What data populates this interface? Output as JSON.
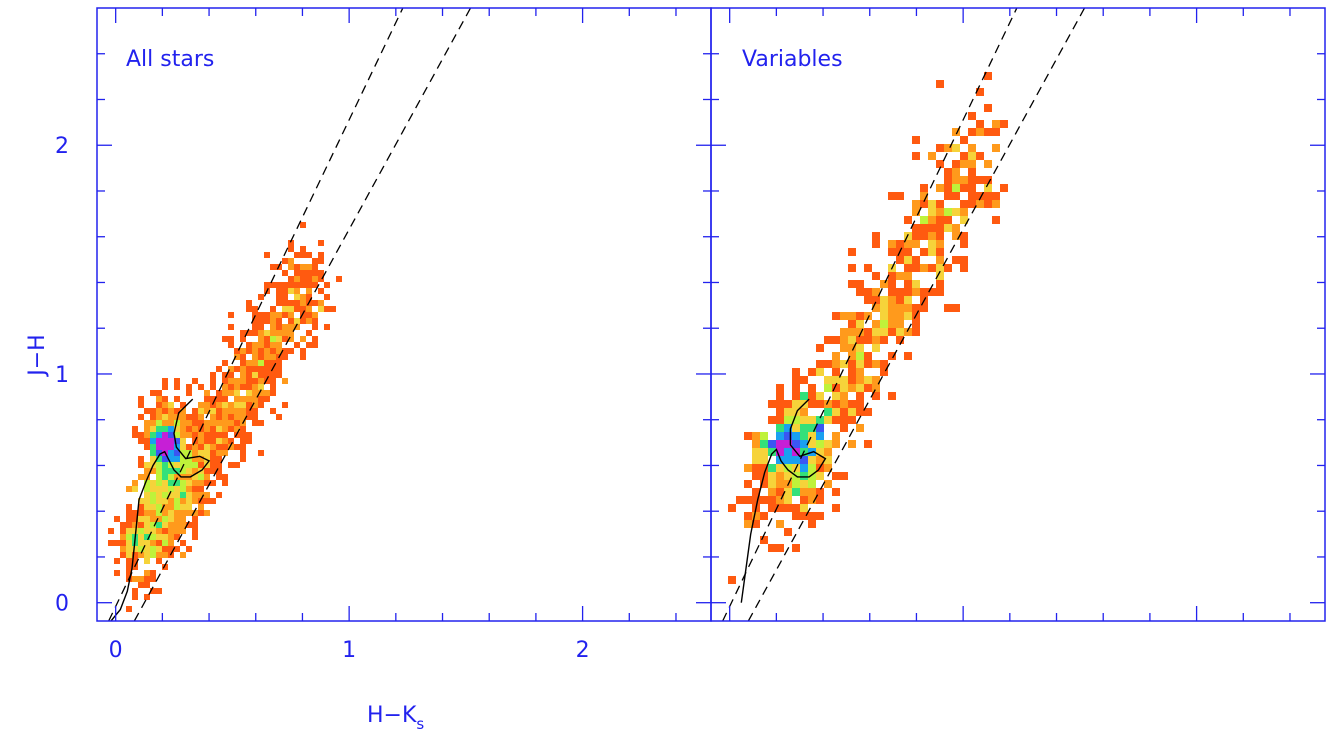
{
  "colors": {
    "axis": "#2222ee",
    "text": "#2222ee",
    "curve": "#000000",
    "density": [
      "#ff1f00",
      "#ff5a10",
      "#ff9a1c",
      "#f6d33a",
      "#bff23a",
      "#33e07a",
      "#1aa0f0",
      "#3b56f2",
      "#c61fd6"
    ]
  },
  "chart_data": [
    {
      "type": "heatmap",
      "panel_label": "All stars",
      "xlabel": "H−K",
      "xlabel_subscript": "s",
      "ylabel": "J−H",
      "xlim": [
        -0.08,
        2.55
      ],
      "ylim": [
        -0.08,
        2.6
      ],
      "x_ticks": [
        0,
        1,
        2
      ],
      "y_ticks": [
        0,
        1,
        2
      ],
      "reddening_lines": [
        {
          "from": [
            -0.03,
            -0.08
          ],
          "to": [
            1.23,
            2.6
          ]
        },
        {
          "from": [
            0.08,
            -0.08
          ],
          "to": [
            1.52,
            2.6
          ]
        }
      ],
      "intrinsic_locus": [
        [
          -0.02,
          -0.08
        ],
        [
          0.02,
          -0.03
        ],
        [
          0.05,
          0.05
        ],
        [
          0.07,
          0.15
        ],
        [
          0.08,
          0.25
        ],
        [
          0.09,
          0.35
        ],
        [
          0.1,
          0.45
        ],
        [
          0.13,
          0.53
        ],
        [
          0.16,
          0.6
        ],
        [
          0.19,
          0.65
        ],
        [
          0.21,
          0.66
        ],
        [
          0.23,
          0.62
        ],
        [
          0.25,
          0.58
        ],
        [
          0.28,
          0.55
        ],
        [
          0.32,
          0.55
        ],
        [
          0.37,
          0.58
        ],
        [
          0.4,
          0.62
        ],
        [
          0.36,
          0.64
        ],
        [
          0.3,
          0.63
        ],
        [
          0.26,
          0.68
        ],
        [
          0.25,
          0.74
        ],
        [
          0.27,
          0.83
        ],
        [
          0.33,
          0.89
        ]
      ],
      "density": [
        {
          "x": 0.08,
          "y": 0.3,
          "level": 4
        },
        {
          "x": 0.12,
          "y": 0.5,
          "level": 5
        },
        {
          "x": 0.2,
          "y": 0.68,
          "level": 7
        },
        {
          "x": 0.22,
          "y": 0.7,
          "level": 8
        }
      ]
    },
    {
      "type": "heatmap",
      "panel_label": "Variables",
      "xlim": [
        -0.08,
        2.55
      ],
      "ylim": [
        -0.08,
        2.6
      ],
      "reddening_lines": [
        {
          "from": [
            -0.03,
            -0.08
          ],
          "to": [
            1.23,
            2.6
          ]
        },
        {
          "from": [
            0.08,
            -0.08
          ],
          "to": [
            1.52,
            2.6
          ]
        }
      ],
      "intrinsic_locus": [
        [
          0.05,
          0.0
        ],
        [
          0.07,
          0.15
        ],
        [
          0.09,
          0.3
        ],
        [
          0.12,
          0.45
        ],
        [
          0.15,
          0.57
        ],
        [
          0.18,
          0.65
        ],
        [
          0.2,
          0.67
        ],
        [
          0.22,
          0.62
        ],
        [
          0.25,
          0.58
        ],
        [
          0.29,
          0.55
        ],
        [
          0.34,
          0.55
        ],
        [
          0.38,
          0.58
        ],
        [
          0.41,
          0.63
        ],
        [
          0.36,
          0.66
        ],
        [
          0.3,
          0.64
        ],
        [
          0.26,
          0.69
        ],
        [
          0.26,
          0.76
        ],
        [
          0.29,
          0.84
        ],
        [
          0.34,
          0.89
        ]
      ],
      "density": [
        {
          "x": 0.22,
          "y": 0.7,
          "level": 6
        },
        {
          "x": 0.4,
          "y": 0.75,
          "level": 3
        }
      ]
    }
  ]
}
